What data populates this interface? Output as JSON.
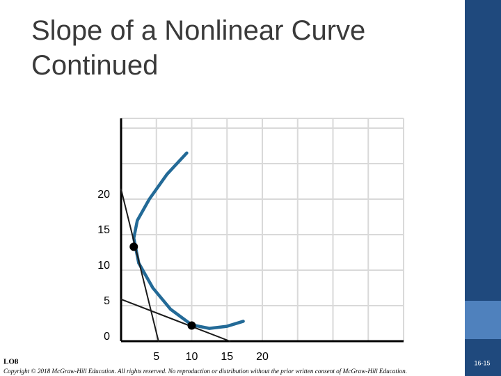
{
  "chart_data": {
    "type": "line",
    "title": "Slope of a Nonlinear Curve Continued",
    "xlim": [
      0,
      40
    ],
    "ylim": [
      0,
      30
    ],
    "xticks": [
      5,
      10,
      15,
      20
    ],
    "yticks": [
      0,
      5,
      10,
      15,
      20
    ],
    "xgrid": [
      0,
      5,
      10,
      15,
      20,
      25,
      30,
      35,
      40
    ],
    "ygrid": [
      0,
      5,
      10,
      15,
      20,
      25,
      30
    ],
    "grid": true,
    "series": [
      {
        "color": "#236a97",
        "style": "line",
        "x": [
          9.3,
          6.5,
          4,
          2.3,
          1.8,
          2.5,
          4.5,
          7,
          10,
          12.5,
          15,
          17.3
        ],
        "values": [
          26.5,
          23.5,
          20,
          17,
          14.5,
          11,
          7.5,
          4.5,
          2.3,
          1.8,
          2.1,
          2.8
        ]
      },
      {
        "color": "#1a1a1a",
        "style": "line",
        "x": [
          0,
          5.3
        ],
        "values": [
          21.4,
          0
        ]
      },
      {
        "color": "#1a1a1a",
        "style": "line",
        "x": [
          0,
          15.4
        ],
        "values": [
          5.9,
          0
        ]
      },
      {
        "color": "#000000",
        "style": "markers",
        "x": [
          1.8,
          10
        ],
        "values": [
          13.3,
          2.2
        ]
      }
    ]
  },
  "footer": {
    "objective": "LO8",
    "copyright": "Copyright © 2018 McGraw-Hill Education. All rights reserved. No reproduction or distribution without the prior written consent of McGraw-Hill Education.",
    "slide_number": "16-15"
  }
}
